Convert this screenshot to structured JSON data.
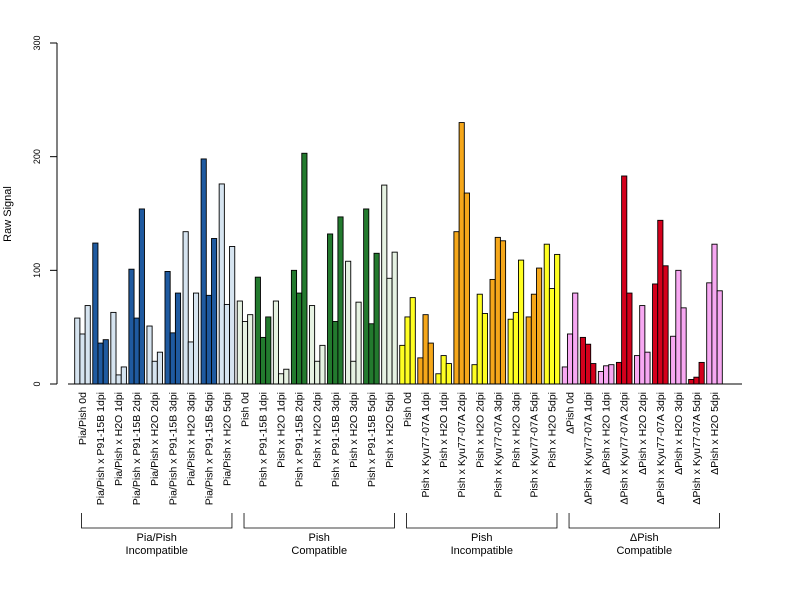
{
  "chart_data": {
    "type": "bar",
    "ylabel": "Raw Signal",
    "ylim": [
      0,
      300
    ],
    "yticks": [
      0,
      100,
      200,
      300
    ],
    "grid": false,
    "colors": {
      "pia_dark": "#1f5aa0",
      "pia_light": "#d6e4f0",
      "pish_dark": "#237a2e",
      "pish_light": "#e6f2e2",
      "pishinc_dark": "#f5a71a",
      "pishinc_light": "#ffff22",
      "dpish_dark": "#d4001c",
      "dpish_light": "#f7a8f2"
    },
    "groups": [
      {
        "label_line1": "Pia/Pish",
        "label_line2": "Incompatible"
      },
      {
        "label_line1": "Pish",
        "label_line2": "Compatible"
      },
      {
        "label_line1": "Pish",
        "label_line2": "Incompatible"
      },
      {
        "label_line1": "ΔPish",
        "label_line2": "Compatible"
      }
    ],
    "categories": [
      {
        "label": "Pia/Pish 0d",
        "group": 0,
        "color": "pia_light",
        "values": [
          58,
          44,
          69
        ]
      },
      {
        "label": "Pia/Pish x P91-15B 1dpi",
        "group": 0,
        "color": "pia_dark",
        "values": [
          124,
          36,
          39
        ]
      },
      {
        "label": "Pia/Pish x H2O 1dpi",
        "group": 0,
        "color": "pia_light",
        "values": [
          63,
          8,
          15
        ]
      },
      {
        "label": "Pia/Pish x P91-15B 2dpi",
        "group": 0,
        "color": "pia_dark",
        "values": [
          101,
          58,
          154
        ]
      },
      {
        "label": "Pia/Pish x H2O 2dpi",
        "group": 0,
        "color": "pia_light",
        "values": [
          51,
          20,
          28
        ]
      },
      {
        "label": "Pia/Pish x P91-15B 3dpi",
        "group": 0,
        "color": "pia_dark",
        "values": [
          99,
          45,
          80
        ]
      },
      {
        "label": "Pia/Pish x H2O 3dpi",
        "group": 0,
        "color": "pia_light",
        "values": [
          134,
          37,
          80
        ]
      },
      {
        "label": "Pia/Pish x P91-15B 5dpi",
        "group": 0,
        "color": "pia_dark",
        "values": [
          198,
          78,
          128
        ]
      },
      {
        "label": "Pia/Pish x H2O 5dpi",
        "group": 0,
        "color": "pia_light",
        "values": [
          176,
          70,
          121
        ]
      },
      {
        "label": "Pish 0d",
        "group": 1,
        "color": "pish_light",
        "values": [
          73,
          55,
          61
        ]
      },
      {
        "label": "Pish x P91-15B 1dpi",
        "group": 1,
        "color": "pish_dark",
        "values": [
          94,
          41,
          59
        ]
      },
      {
        "label": "Pish x H2O 1dpi",
        "group": 1,
        "color": "pish_light",
        "values": [
          73,
          9,
          13
        ]
      },
      {
        "label": "Pish x P91-15B 2dpi",
        "group": 1,
        "color": "pish_dark",
        "values": [
          100,
          80,
          203
        ]
      },
      {
        "label": "Pish x H2O 2dpi",
        "group": 1,
        "color": "pish_light",
        "values": [
          69,
          20,
          34
        ]
      },
      {
        "label": "Pish x P91-15B 3dpi",
        "group": 1,
        "color": "pish_dark",
        "values": [
          132,
          55,
          147
        ]
      },
      {
        "label": "Pish x H2O 3dpi",
        "group": 1,
        "color": "pish_light",
        "values": [
          108,
          20,
          72
        ]
      },
      {
        "label": "Pish x P91-15B 5dpi",
        "group": 1,
        "color": "pish_dark",
        "values": [
          154,
          53,
          115
        ]
      },
      {
        "label": "Pish x H2O 5dpi",
        "group": 1,
        "color": "pish_light",
        "values": [
          175,
          93,
          116
        ]
      },
      {
        "label": "Pish 0d",
        "group": 2,
        "color": "pishinc_light",
        "values": [
          34,
          59,
          76
        ]
      },
      {
        "label": "Pish x Kyu77-07A 1dpi",
        "group": 2,
        "color": "pishinc_dark",
        "values": [
          23,
          61,
          36
        ]
      },
      {
        "label": "Pish x H2O 1dpi",
        "group": 2,
        "color": "pishinc_light",
        "values": [
          9,
          25,
          18
        ]
      },
      {
        "label": "Pish x Kyu77-07A 2dpi",
        "group": 2,
        "color": "pishinc_dark",
        "values": [
          134,
          230,
          168
        ]
      },
      {
        "label": "Pish x H2O 2dpi",
        "group": 2,
        "color": "pishinc_light",
        "values": [
          17,
          79,
          62
        ]
      },
      {
        "label": "Pish x Kyu77-07A 3dpi",
        "group": 2,
        "color": "pishinc_dark",
        "values": [
          92,
          129,
          126
        ]
      },
      {
        "label": "Pish x H2O 3dpi",
        "group": 2,
        "color": "pishinc_light",
        "values": [
          57,
          63,
          109
        ]
      },
      {
        "label": "Pish x Kyu77-07A 5dpi",
        "group": 2,
        "color": "pishinc_dark",
        "values": [
          59,
          79,
          102
        ]
      },
      {
        "label": "Pish x H2O 5dpi",
        "group": 2,
        "color": "pishinc_light",
        "values": [
          123,
          84,
          114
        ]
      },
      {
        "label": "ΔPish 0d",
        "group": 3,
        "color": "dpish_light",
        "values": [
          15,
          44,
          80
        ]
      },
      {
        "label": "ΔPish x Kyu77-07A 1dpi",
        "group": 3,
        "color": "dpish_dark",
        "values": [
          41,
          35,
          18
        ]
      },
      {
        "label": "ΔPish x H2O 1dpi",
        "group": 3,
        "color": "dpish_light",
        "values": [
          11,
          16,
          17
        ]
      },
      {
        "label": "ΔPish x Kyu77-07A 2dpi",
        "group": 3,
        "color": "dpish_dark",
        "values": [
          19,
          183,
          80
        ]
      },
      {
        "label": "ΔPish x H2O 2dpi",
        "group": 3,
        "color": "dpish_light",
        "values": [
          25,
          69,
          28
        ]
      },
      {
        "label": "ΔPish x Kyu77-07A 3dpi",
        "group": 3,
        "color": "dpish_dark",
        "values": [
          88,
          144,
          104
        ]
      },
      {
        "label": "ΔPish x H2O 3dpi",
        "group": 3,
        "color": "dpish_light",
        "values": [
          42,
          100,
          67
        ]
      },
      {
        "label": "ΔPish x Kyu77-07A 5dpi",
        "group": 3,
        "color": "dpish_dark",
        "values": [
          4,
          6,
          19
        ]
      },
      {
        "label": "ΔPish x H2O 5dpi",
        "group": 3,
        "color": "dpish_light",
        "values": [
          89,
          123,
          82
        ]
      }
    ]
  }
}
